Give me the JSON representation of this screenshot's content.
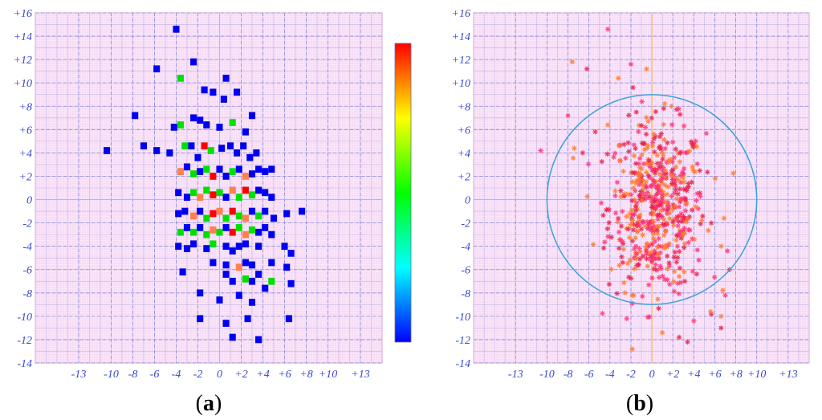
{
  "chart_data": [
    {
      "id": "a",
      "type": "heatmap",
      "caption": "a",
      "x_ticks": [
        "-13",
        "-10",
        "-8",
        "-6",
        "-4",
        "-2",
        "0",
        "+2",
        "+4",
        "+6",
        "+8",
        "+10",
        "+13"
      ],
      "x_tick_values": [
        -13,
        -10,
        -8,
        -6,
        -4,
        -2,
        0,
        2,
        4,
        6,
        8,
        10,
        13
      ],
      "y_ticks": [
        "+16",
        "+14",
        "+12",
        "+10",
        "+8",
        "+6",
        "+4",
        "+2",
        "0",
        "-2",
        "-4",
        "-6",
        "-8",
        "-10",
        "-12",
        "-14"
      ],
      "y_tick_values": [
        16,
        14,
        12,
        10,
        8,
        6,
        4,
        2,
        0,
        -2,
        -4,
        -6,
        -8,
        -10,
        -12,
        -14
      ],
      "xlim": [
        -17,
        15
      ],
      "ylim": [
        -14,
        16
      ],
      "colorbar": [
        "#0000ff",
        "#00ffff",
        "#00ff00",
        "#ffff00",
        "#ff0000"
      ],
      "cell_size": 0.6,
      "cells": [
        [
          -4,
          14.6,
          "b"
        ],
        [
          -5.8,
          11.2,
          "b"
        ],
        [
          -3.6,
          10.4,
          "g"
        ],
        [
          -2.4,
          11.8,
          "b"
        ],
        [
          -1.4,
          9.4,
          "b"
        ],
        [
          1.6,
          9.2,
          "b"
        ],
        [
          0.6,
          10.4,
          "b"
        ],
        [
          -7.8,
          7.2,
          "b"
        ],
        [
          -4.2,
          6.2,
          "b"
        ],
        [
          -3.6,
          6.4,
          "g"
        ],
        [
          -2.4,
          7.0,
          "b"
        ],
        [
          -1.8,
          6.8,
          "b"
        ],
        [
          -1.2,
          6.4,
          "b"
        ],
        [
          0,
          6.2,
          "b"
        ],
        [
          1.2,
          6.6,
          "g"
        ],
        [
          2.4,
          5.8,
          "b"
        ],
        [
          3.0,
          7.2,
          "b"
        ],
        [
          -0.6,
          9.2,
          "b"
        ],
        [
          0.4,
          8.6,
          "b"
        ],
        [
          -10.4,
          4.2,
          "b"
        ],
        [
          -7.0,
          4.6,
          "b"
        ],
        [
          -5.8,
          4.2,
          "b"
        ],
        [
          -4.6,
          4.0,
          "b"
        ],
        [
          -3.2,
          4.6,
          "g"
        ],
        [
          -2.6,
          4.6,
          "b"
        ],
        [
          -2.0,
          3.6,
          "b"
        ],
        [
          -1.4,
          4.6,
          "r"
        ],
        [
          -0.8,
          4.2,
          "g"
        ],
        [
          0.2,
          4.4,
          "b"
        ],
        [
          1.0,
          4.6,
          "b"
        ],
        [
          1.6,
          4.0,
          "b"
        ],
        [
          2.2,
          4.6,
          "b"
        ],
        [
          2.8,
          3.6,
          "b"
        ],
        [
          3.4,
          4.0,
          "b"
        ],
        [
          -3.6,
          2.4,
          "o"
        ],
        [
          -3.0,
          2.8,
          "b"
        ],
        [
          -2.4,
          2.2,
          "g"
        ],
        [
          -1.8,
          2.4,
          "b"
        ],
        [
          -1.2,
          2.6,
          "g"
        ],
        [
          -0.6,
          2.0,
          "r"
        ],
        [
          0.0,
          2.6,
          "b"
        ],
        [
          0.6,
          2.0,
          "b"
        ],
        [
          1.2,
          2.4,
          "g"
        ],
        [
          1.8,
          2.6,
          "b"
        ],
        [
          2.4,
          2.0,
          "o"
        ],
        [
          3.0,
          2.2,
          "b"
        ],
        [
          3.6,
          2.6,
          "b"
        ],
        [
          4.2,
          2.4,
          "b"
        ],
        [
          4.8,
          2.6,
          "b"
        ],
        [
          -3.8,
          0.6,
          "b"
        ],
        [
          -3.0,
          0.2,
          "b"
        ],
        [
          -2.4,
          0.6,
          "g"
        ],
        [
          -1.8,
          0.2,
          "o"
        ],
        [
          -1.2,
          0.8,
          "g"
        ],
        [
          -0.6,
          0.4,
          "r"
        ],
        [
          0.0,
          0.6,
          "g"
        ],
        [
          0.6,
          0.2,
          "b"
        ],
        [
          1.2,
          0.8,
          "o"
        ],
        [
          1.8,
          0.2,
          "g"
        ],
        [
          2.4,
          0.8,
          "r"
        ],
        [
          3.0,
          0.4,
          "g"
        ],
        [
          3.6,
          0.8,
          "b"
        ],
        [
          4.2,
          0.6,
          "b"
        ],
        [
          4.8,
          0.2,
          "b"
        ],
        [
          -3.8,
          -1.2,
          "b"
        ],
        [
          -3.2,
          -1.0,
          "b"
        ],
        [
          -2.4,
          -1.4,
          "o"
        ],
        [
          -1.8,
          -1.0,
          "b"
        ],
        [
          -1.2,
          -1.6,
          "g"
        ],
        [
          -0.6,
          -1.2,
          "r"
        ],
        [
          0.0,
          -1.0,
          "o"
        ],
        [
          0.6,
          -1.6,
          "g"
        ],
        [
          1.2,
          -1.0,
          "r"
        ],
        [
          1.8,
          -1.4,
          "g"
        ],
        [
          2.4,
          -1.6,
          "o"
        ],
        [
          3.0,
          -1.0,
          "b"
        ],
        [
          3.6,
          -1.4,
          "g"
        ],
        [
          4.2,
          -1.0,
          "b"
        ],
        [
          5.0,
          -1.6,
          "b"
        ],
        [
          6.2,
          -1.2,
          "b"
        ],
        [
          7.6,
          -1.0,
          "b"
        ],
        [
          -3.6,
          -2.8,
          "g"
        ],
        [
          -3.0,
          -2.4,
          "b"
        ],
        [
          -2.4,
          -2.8,
          "g"
        ],
        [
          -1.8,
          -2.4,
          "b"
        ],
        [
          -1.2,
          -3.0,
          "g"
        ],
        [
          -0.6,
          -2.6,
          "o"
        ],
        [
          0.0,
          -2.8,
          "g"
        ],
        [
          0.6,
          -2.4,
          "b"
        ],
        [
          1.2,
          -2.8,
          "r"
        ],
        [
          1.8,
          -2.4,
          "g"
        ],
        [
          2.4,
          -3.0,
          "o"
        ],
        [
          3.0,
          -2.6,
          "g"
        ],
        [
          3.6,
          -2.8,
          "b"
        ],
        [
          4.2,
          -2.4,
          "b"
        ],
        [
          4.8,
          -3.0,
          "b"
        ],
        [
          -3.8,
          -4.0,
          "b"
        ],
        [
          -3.0,
          -4.2,
          "b"
        ],
        [
          -2.4,
          -3.8,
          "b"
        ],
        [
          -1.2,
          -4.2,
          "b"
        ],
        [
          -0.6,
          -3.8,
          "g"
        ],
        [
          0.6,
          -4.0,
          "b"
        ],
        [
          1.2,
          -4.4,
          "b"
        ],
        [
          1.8,
          -4.0,
          "b"
        ],
        [
          2.4,
          -3.8,
          "b"
        ],
        [
          3.6,
          -4.0,
          "b"
        ],
        [
          6.0,
          -4.0,
          "b"
        ],
        [
          6.6,
          -4.6,
          "b"
        ],
        [
          -0.6,
          -5.4,
          "b"
        ],
        [
          0.6,
          -5.6,
          "b"
        ],
        [
          1.8,
          -5.8,
          "o"
        ],
        [
          2.4,
          -5.4,
          "b"
        ],
        [
          3.0,
          -5.6,
          "b"
        ],
        [
          4.8,
          -5.4,
          "b"
        ],
        [
          6.2,
          -5.8,
          "b"
        ],
        [
          -3.4,
          -6.2,
          "b"
        ],
        [
          0.6,
          -6.4,
          "b"
        ],
        [
          1.2,
          -7.0,
          "b"
        ],
        [
          2.4,
          -6.8,
          "g"
        ],
        [
          3.0,
          -7.0,
          "b"
        ],
        [
          3.6,
          -6.4,
          "b"
        ],
        [
          4.2,
          -7.6,
          "b"
        ],
        [
          4.8,
          -7.0,
          "g"
        ],
        [
          6.6,
          -7.2,
          "b"
        ],
        [
          -1.8,
          -8.0,
          "b"
        ],
        [
          0.0,
          -8.6,
          "b"
        ],
        [
          1.8,
          -8.2,
          "b"
        ],
        [
          3.0,
          -8.8,
          "b"
        ],
        [
          -1.8,
          -10.2,
          "b"
        ],
        [
          0.6,
          -10.6,
          "b"
        ],
        [
          2.6,
          -10.2,
          "b"
        ],
        [
          6.4,
          -10.2,
          "b"
        ],
        [
          1.2,
          -11.8,
          "b"
        ],
        [
          3.6,
          -12.0,
          "b"
        ]
      ]
    },
    {
      "id": "b",
      "type": "scatter",
      "caption": "b",
      "x_ticks": [
        "-13",
        "-10",
        "-8",
        "-6",
        "-4",
        "-2",
        "0",
        "+2",
        "+4",
        "+6",
        "+8",
        "+10",
        "+13"
      ],
      "x_tick_values": [
        -13,
        -10,
        -8,
        -6,
        -4,
        -2,
        0,
        2,
        4,
        6,
        8,
        10,
        13
      ],
      "y_ticks": [
        "+16",
        "+14",
        "+12",
        "+10",
        "+8",
        "+6",
        "+4",
        "+2",
        "0",
        "-2",
        "-4",
        "-6",
        "-8",
        "-10",
        "-12",
        "-14"
      ],
      "y_tick_values": [
        16,
        14,
        12,
        10,
        8,
        6,
        4,
        2,
        0,
        -2,
        -4,
        -6,
        -8,
        -10,
        -12,
        -14
      ],
      "xlim": [
        -17,
        15
      ],
      "ylim": [
        -14,
        16
      ],
      "circle_radius": 10,
      "circle_color": "#3ba0d8",
      "point_colors": [
        "#ff3377",
        "#ff7a2a",
        "#e8204a"
      ],
      "points": [
        [
          -4.2,
          14.6
        ],
        [
          -7.6,
          11.8
        ],
        [
          -6.2,
          11.2
        ],
        [
          -2.0,
          11.6
        ],
        [
          -3.2,
          10.4
        ],
        [
          -1.8,
          9.6
        ],
        [
          -8.0,
          7.2
        ],
        [
          -4.2,
          6.4
        ],
        [
          -5.4,
          5.8
        ],
        [
          -10.6,
          4.2
        ],
        [
          -7.4,
          4.4
        ],
        [
          -6.6,
          4.0
        ],
        [
          7.2,
          -4.4
        ],
        [
          6.6,
          -4.0
        ],
        [
          7.4,
          -6.0
        ],
        [
          7.0,
          -8.2
        ],
        [
          6.6,
          -10.0
        ],
        [
          6.6,
          -11.0
        ],
        [
          -2.4,
          -10.2
        ],
        [
          1.0,
          -11.4
        ],
        [
          3.4,
          -12.2
        ],
        [
          4.0,
          -10.4
        ],
        [
          5.6,
          -9.6
        ],
        [
          2.6,
          -11.8
        ]
      ],
      "cluster": {
        "count": 560,
        "mean": [
          0.5,
          -0.6
        ],
        "sd": [
          2.3,
          3.6
        ]
      }
    }
  ]
}
